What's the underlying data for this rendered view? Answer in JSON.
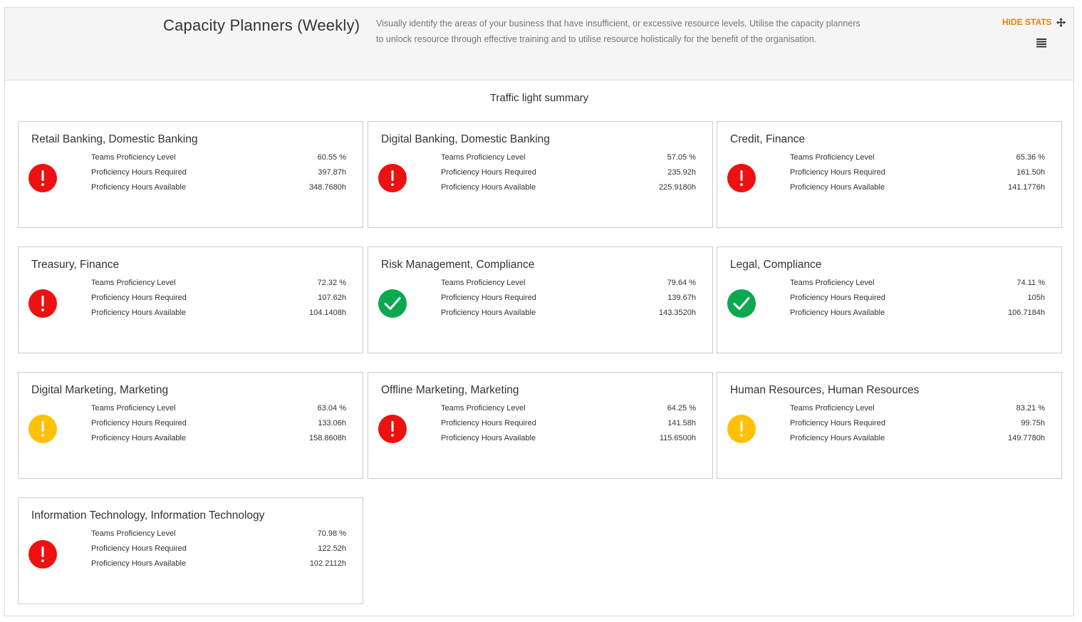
{
  "header": {
    "title": "Capacity Planners (Weekly)",
    "description": "Visually identify the areas of your business that have insufficient, or excessive resource levels. Utilise the capacity planners to unlock resource through effective training and to utilise resource holistically for the benefit of the organisation.",
    "hide_stats_label": "HIDE STATS",
    "accent_color": "#e8800c"
  },
  "summary": {
    "title": "Traffic light summary"
  },
  "labels": {
    "level": "Teams Proficiency Level",
    "required": "Proficiency Hours Required",
    "available": "Proficiency Hours Available"
  },
  "status_colors": {
    "red": "#ee1111",
    "amber": "#ffc107",
    "green": "#0aa84f"
  },
  "cards": [
    {
      "title": "Retail Banking, Domestic Banking",
      "status": "red",
      "level": "60.55 %",
      "required": "397.87h",
      "available": "348.7680h"
    },
    {
      "title": "Digital Banking, Domestic Banking",
      "status": "red",
      "level": "57.05 %",
      "required": "235.92h",
      "available": "225.9180h"
    },
    {
      "title": "Credit, Finance",
      "status": "red",
      "level": "65.36 %",
      "required": "161.50h",
      "available": "141.1776h"
    },
    {
      "title": "Treasury, Finance",
      "status": "red",
      "level": "72.32 %",
      "required": "107.62h",
      "available": "104.1408h"
    },
    {
      "title": "Risk Management, Compliance",
      "status": "green",
      "level": "79.64 %",
      "required": "139.67h",
      "available": "143.3520h"
    },
    {
      "title": "Legal, Compliance",
      "status": "green",
      "level": "74.11 %",
      "required": "105h",
      "available": "106.7184h"
    },
    {
      "title": "Digital Marketing, Marketing",
      "status": "amber",
      "level": "63.04 %",
      "required": "133.06h",
      "available": "158.8608h"
    },
    {
      "title": "Offline Marketing, Marketing",
      "status": "red",
      "level": "64.25 %",
      "required": "141.58h",
      "available": "115.6500h"
    },
    {
      "title": "Human Resources, Human Resources",
      "status": "amber",
      "level": "83.21 %",
      "required": "99.75h",
      "available": "149.7780h"
    },
    {
      "title": "Information Technology, Information Technology",
      "status": "red",
      "level": "70.98 %",
      "required": "122.52h",
      "available": "102.2112h"
    }
  ]
}
